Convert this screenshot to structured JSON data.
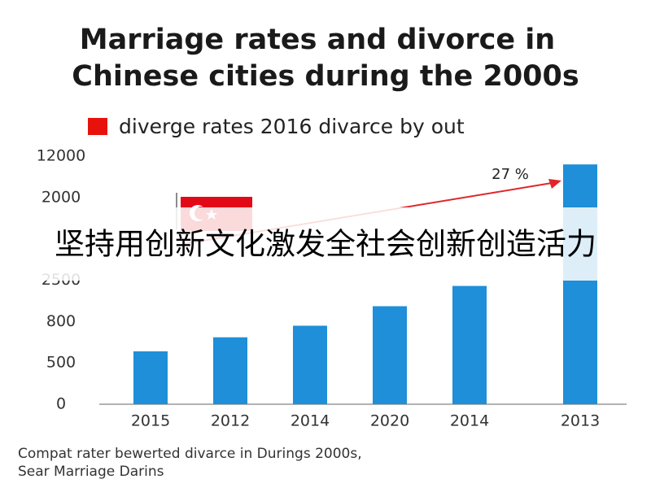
{
  "chart_data": {
    "type": "bar",
    "title": [
      "Marriage rates and divorce in",
      "Chinese cities during the 2000s"
    ],
    "categories": [
      "2015",
      "2012",
      "2014",
      "2020",
      "2014",
      "2013"
    ],
    "series": [
      {
        "name": "diverge rates 2016 divarce by out",
        "color": "#1e8fd8",
        "values": [
          584,
          686,
          770,
          1433,
          2267,
          10039
        ]
      }
    ],
    "legend_color": "#e8120c",
    "yticks": [
      0,
      500,
      800,
      2500,
      null,
      2000,
      12000
    ],
    "annotation": "27 %",
    "note": [
      "Compat rater bewerted divarce in Durings 2000s,",
      "Sear Marriage Darins"
    ],
    "overlay_text": "坚持用创新文化激发全社会创新创造活力"
  }
}
